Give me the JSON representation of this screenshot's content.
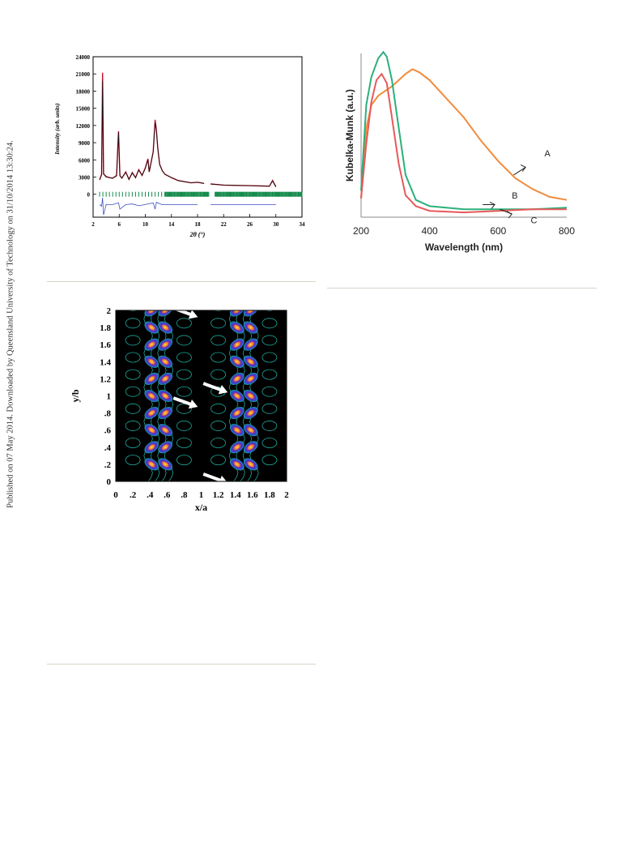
{
  "sidebar": {
    "text": "Published on 07 May 2014. Downloaded by Queensland University of Technology on 31/10/2014 13:30:24."
  },
  "chart_data": [
    {
      "type": "line",
      "panel": "xrd",
      "xlabel": "2θ (°)",
      "ylabel": "Intensity (arb. units)",
      "xlim": [
        2,
        34
      ],
      "ylim": [
        -4000,
        24000
      ],
      "xticks": [
        "2",
        "6",
        "10",
        "14",
        "18",
        "22",
        "26",
        "30",
        "34"
      ],
      "yticks": [
        "24000",
        "21000",
        "18000",
        "15000",
        "12000",
        "9000",
        "6000",
        "3000",
        "0"
      ],
      "series": [
        {
          "role": "observed",
          "color": "#c8102e",
          "x": [
            3,
            3.3,
            3.45,
            3.6,
            4,
            4.5,
            5,
            5.6,
            5.9,
            6.1,
            6.4,
            7,
            7.5,
            8,
            8.5,
            9,
            9.5,
            10,
            10.4,
            10.6,
            10.9,
            11.2,
            11.5,
            11.7,
            11.9,
            12.2,
            12.6,
            13,
            14,
            15,
            16,
            17,
            18,
            19,
            20,
            21,
            22,
            24,
            26,
            28,
            29,
            29.5,
            30
          ],
          "y": [
            2500,
            3500,
            21200,
            3600,
            3100,
            2900,
            2800,
            3300,
            11000,
            3300,
            2800,
            3900,
            2600,
            3800,
            2900,
            4300,
            3300,
            4600,
            6200,
            3900,
            5700,
            7400,
            13000,
            11200,
            8200,
            5200,
            4100,
            3500,
            2900,
            2400,
            2200,
            2000,
            2100,
            1900,
            1800,
            1700,
            1600,
            1550,
            1500,
            1450,
            1400,
            2400,
            1300
          ]
        },
        {
          "role": "calculated",
          "color": "#111111",
          "x": [
            3,
            3.3,
            3.45,
            3.6,
            4,
            4.5,
            5,
            5.6,
            5.9,
            6.1,
            6.4,
            7,
            7.5,
            8,
            8.5,
            9,
            9.5,
            10,
            10.4,
            10.6,
            10.9,
            11.2,
            11.5,
            11.7,
            11.9,
            12.2,
            12.6,
            13,
            14,
            15,
            16,
            17,
            18,
            19,
            20,
            21,
            22,
            24,
            26,
            28,
            29,
            29.5,
            30
          ],
          "y": [
            2500,
            3400,
            19800,
            3500,
            3000,
            2900,
            2800,
            3200,
            10800,
            3200,
            2800,
            3800,
            2600,
            3700,
            2900,
            4200,
            3300,
            4500,
            6000,
            3900,
            5600,
            7300,
            12500,
            11000,
            8100,
            5200,
            4100,
            3500,
            2900,
            2400,
            2200,
            2000,
            2100,
            1900,
            1800,
            1700,
            1600,
            1550,
            1500,
            1450,
            1400,
            2300,
            1300
          ]
        },
        {
          "role": "difference",
          "color": "#3b4fc4",
          "x": [
            3,
            3.3,
            3.45,
            3.6,
            4,
            5,
            5.9,
            6.1,
            7,
            8,
            9,
            10,
            11.2,
            11.5,
            11.7,
            12.5,
            14,
            16,
            18,
            20,
            22,
            24,
            26,
            28,
            30
          ],
          "y": [
            -1800,
            -2100,
            -600,
            -3600,
            -1800,
            -1800,
            -1500,
            -2600,
            -1800,
            -1700,
            -2000,
            -1800,
            -1500,
            -2600,
            -1400,
            -1800,
            -1800,
            -1800,
            -1800,
            -1800,
            -1800,
            -1800,
            -1800,
            -1800,
            -1800
          ]
        }
      ],
      "tick_marks_color": "#138a4a",
      "tick_marks_row_y": 0
    },
    {
      "type": "line",
      "panel": "uv-vis",
      "xlabel": "Wavelength (nm)",
      "ylabel": "Kubelka-Munk (a.u.)",
      "xlim": [
        200,
        800
      ],
      "xticks": [
        "200",
        "400",
        "600",
        "800"
      ],
      "series": [
        {
          "name": "A",
          "color": "#f28b3c",
          "x": [
            200,
            215,
            230,
            250,
            270,
            290,
            310,
            330,
            350,
            370,
            400,
            450,
            500,
            550,
            600,
            650,
            700,
            750,
            800
          ],
          "y": [
            0.1,
            0.55,
            0.7,
            0.76,
            0.79,
            0.82,
            0.86,
            0.9,
            0.93,
            0.91,
            0.86,
            0.74,
            0.62,
            0.47,
            0.34,
            0.23,
            0.16,
            0.11,
            0.09
          ]
        },
        {
          "name": "B",
          "color": "#2bb07a",
          "x": [
            200,
            215,
            230,
            250,
            265,
            275,
            290,
            310,
            330,
            360,
            400,
            500,
            600,
            700,
            800
          ],
          "y": [
            0.15,
            0.7,
            0.88,
            1.0,
            1.04,
            1.01,
            0.86,
            0.55,
            0.25,
            0.09,
            0.05,
            0.03,
            0.03,
            0.03,
            0.04
          ]
        },
        {
          "name": "C",
          "color": "#e8585a",
          "x": [
            200,
            215,
            230,
            245,
            260,
            275,
            290,
            310,
            330,
            360,
            400,
            500,
            600,
            700,
            800
          ],
          "y": [
            0.1,
            0.45,
            0.72,
            0.86,
            0.9,
            0.84,
            0.62,
            0.32,
            0.12,
            0.05,
            0.02,
            0.01,
            0.02,
            0.03,
            0.03
          ]
        }
      ]
    },
    {
      "type": "heatmap",
      "panel": "density-map",
      "xlabel": "x/a",
      "ylabel": "y/b",
      "xlim": [
        0,
        2
      ],
      "ylim": [
        0,
        2
      ],
      "xticks": [
        "0",
        ".2",
        ".4",
        ".6",
        ".8",
        "1",
        "1.2",
        "1.4",
        "1.6",
        "1.8",
        "2"
      ],
      "yticks": [
        "0",
        ".2",
        ".4",
        ".6",
        ".8",
        "1",
        "1.2",
        "1.4",
        "1.6",
        "1.8",
        "2"
      ],
      "background": "#000000",
      "contour_color": "#1fa89a",
      "columns_x": [
        0.5,
        1.5
      ],
      "peaks_y": [
        0.2,
        0.4,
        0.6,
        0.8,
        1.0,
        1.2,
        1.4,
        1.6,
        1.8,
        2.0
      ],
      "arrows": [
        {
          "x": 0.8,
          "y": 1.98
        },
        {
          "x": 0.8,
          "y": 0.93
        },
        {
          "x": 1.15,
          "y": 1.1
        },
        {
          "x": 1.15,
          "y": 0.04
        }
      ]
    }
  ]
}
